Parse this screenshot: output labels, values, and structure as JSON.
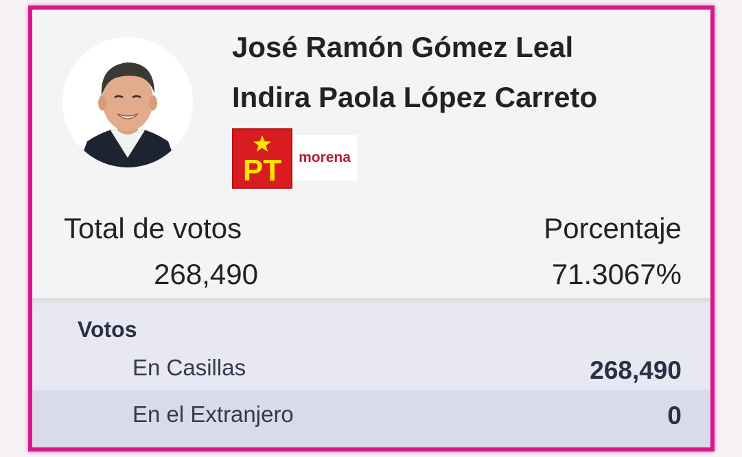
{
  "candidate": {
    "names": [
      "José Ramón Gómez Leal",
      "Indira Paola López Carreto"
    ],
    "photo_icon": "candidate-portrait",
    "party_logos": [
      {
        "icon": "pt-party-logo",
        "text": "PT",
        "color": "#d91c20",
        "accent": "#ffe600"
      },
      {
        "icon": "morena-party-logo",
        "text": "morena",
        "color": "#b5202f"
      }
    ]
  },
  "summary": {
    "total_label": "Total de votos",
    "total_value": "268,490",
    "percent_label": "Porcentaje",
    "percent_value": "71.3067%"
  },
  "votes": {
    "title": "Votos",
    "rows": [
      {
        "label": "En Casillas",
        "value": "268,490"
      },
      {
        "label": "En el Extranjero",
        "value": "0"
      }
    ]
  },
  "colors": {
    "border": "#d6188f",
    "card_background": "#f4f4f5",
    "breakdown_background": "#e7e8f1",
    "row_alt_background": "#d9dbea"
  }
}
